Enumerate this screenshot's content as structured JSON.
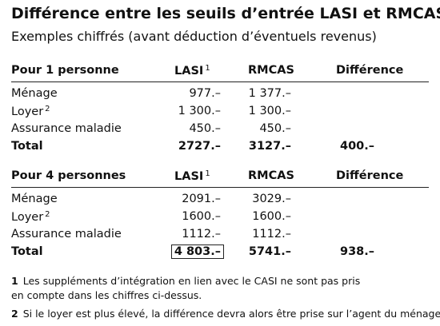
{
  "title": "Différence entre les seuils d’entrée LASI et RMCAS",
  "subtitle": "Exemples chiffrés (avant déduction d’éventuels revenus)",
  "tables": [
    {
      "header": {
        "label": "Pour 1 personne",
        "lasi": "LASI",
        "lasi_note": "1",
        "rmcas": "RMCAS",
        "difference": "Différence"
      },
      "rows": [
        {
          "label": "Ménage",
          "lasi": "977.–",
          "rmcas": "1 377.–"
        },
        {
          "label": "Loyer",
          "note": "2",
          "lasi": "1 300.–",
          "rmcas": "1 300.–"
        },
        {
          "label": "Assurance maladie",
          "lasi": "450.–",
          "rmcas": "450.–"
        }
      ],
      "total": {
        "label": "Total",
        "lasi": "2727.–",
        "rmcas": "3127.–",
        "difference": "400.–"
      }
    },
    {
      "header": {
        "label": "Pour 4 personnes",
        "lasi": "LASI",
        "lasi_note": "1",
        "rmcas": "RMCAS",
        "difference": "Différence"
      },
      "rows": [
        {
          "label": "Ménage",
          "lasi": "2091.–",
          "rmcas": "3029.–"
        },
        {
          "label": "Loyer",
          "note": "2",
          "lasi": "1600.–",
          "rmcas": "1600.–"
        },
        {
          "label": "Assurance maladie",
          "lasi": "1112.–",
          "rmcas": "1112.–"
        }
      ],
      "total": {
        "label": "Total",
        "lasi": "4 803.–",
        "rmcas": "5741.–",
        "difference": "938.–"
      }
    }
  ],
  "footnotes": [
    {
      "number": "1",
      "lines": [
        "Les suppléments d’intégration en lien avec le CASI ne sont pas pris",
        "en compte dans les chiffres ci-dessus."
      ]
    },
    {
      "number": "2",
      "lines": [
        "Si le loyer est plus élevé, la différence devra alors être prise sur l’agent du ménage."
      ]
    }
  ]
}
